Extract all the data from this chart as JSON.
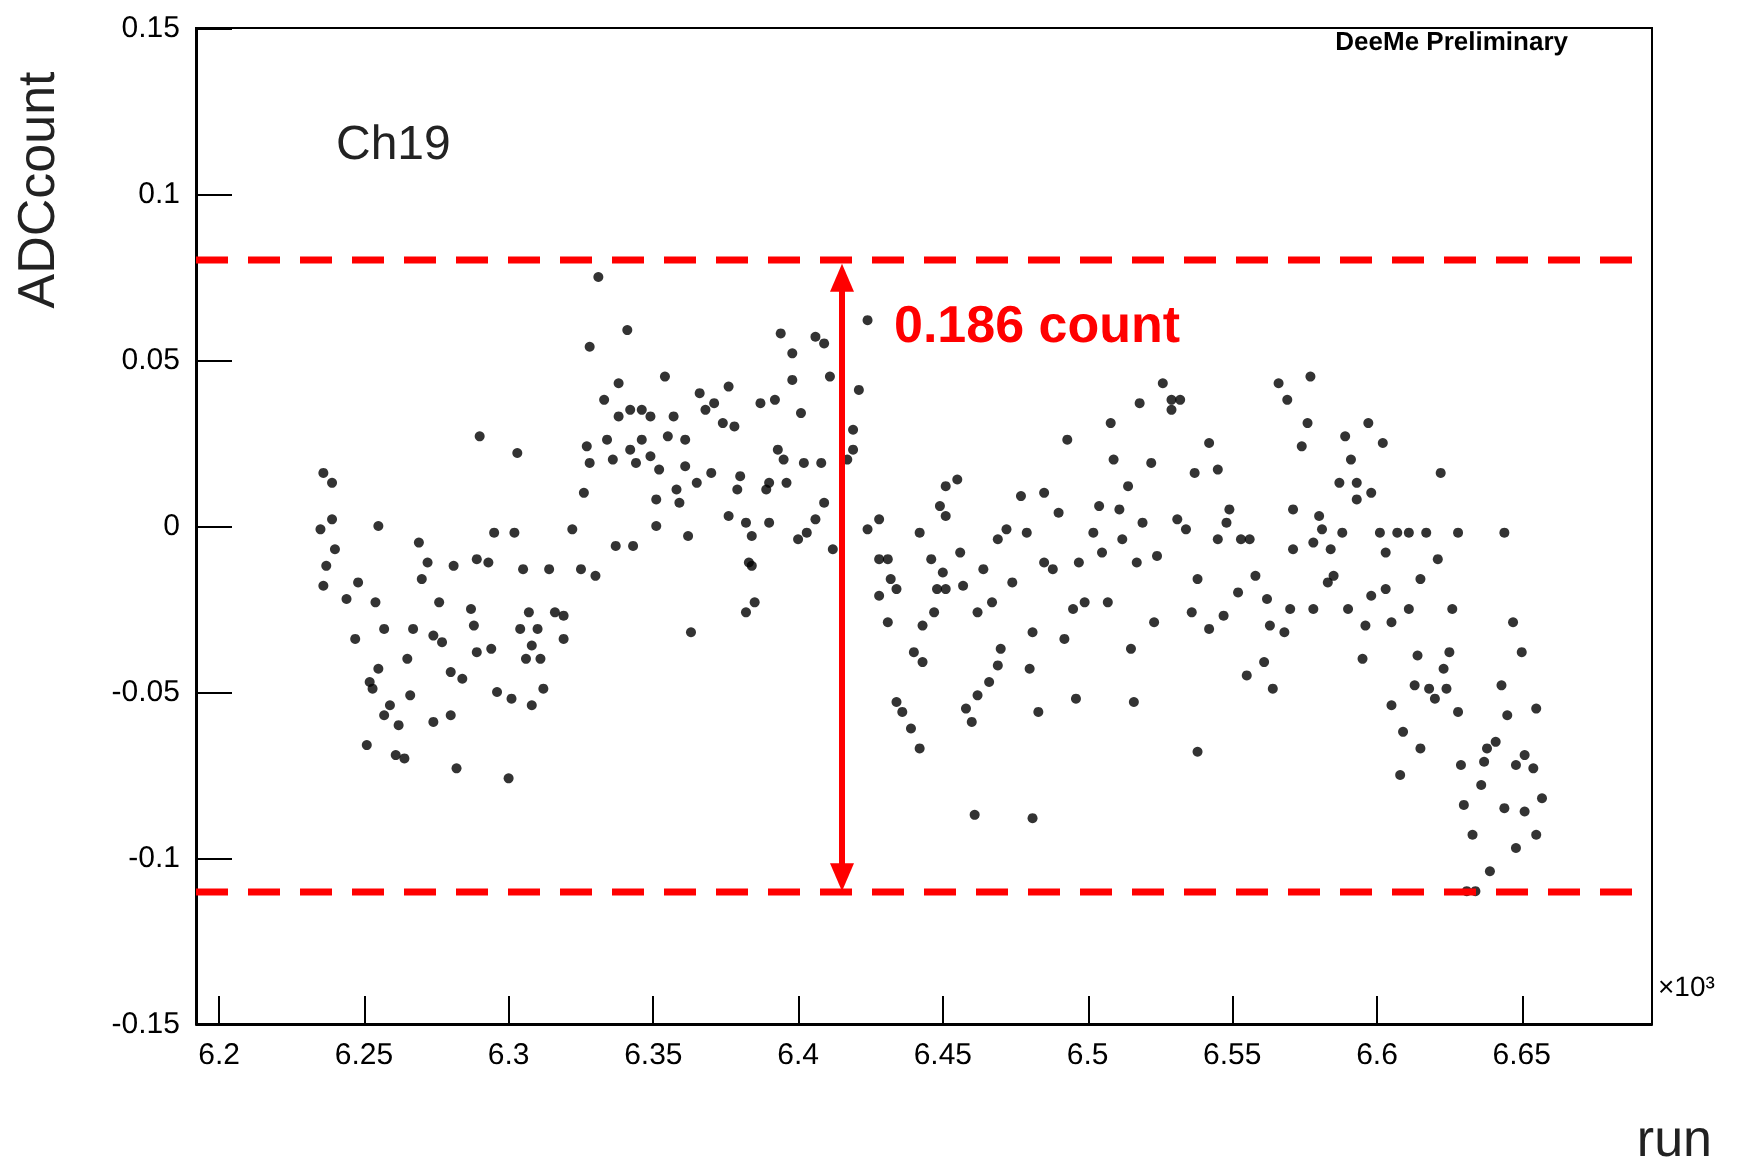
{
  "chart_data": {
    "type": "scatter",
    "xlabel": "run",
    "ylabel": "ADCcount",
    "annotations": [
      "Ch19",
      "DeeMe Preliminary",
      "×10³",
      "0.186 count"
    ],
    "xlim": [
      6.192,
      6.695
    ],
    "xticks": [
      6.2,
      6.25,
      6.3,
      6.35,
      6.4,
      6.45,
      6.5,
      6.55,
      6.6,
      6.65
    ],
    "ylim": [
      -0.15,
      0.15
    ],
    "yticks": [
      -0.15,
      -0.1,
      -0.05,
      0,
      0.05,
      0.1,
      0.15
    ],
    "grid": false,
    "marker": "circle",
    "ref_lines": [
      {
        "axis": "y",
        "value": 0.079,
        "color": "#ff0000",
        "line_style": "dashed"
      },
      {
        "axis": "y",
        "value": -0.11,
        "color": "#ff0000",
        "line_style": "dashed"
      }
    ],
    "series": [
      {
        "color": "#000000",
        "x": [
          6.236,
          6.239,
          6.235,
          6.239,
          6.24,
          6.237,
          6.236,
          6.244,
          6.247,
          6.248,
          6.255,
          6.254,
          6.257,
          6.255,
          6.252,
          6.253,
          6.259,
          6.257,
          6.262,
          6.251,
          6.261,
          6.264,
          6.266,
          6.265,
          6.267,
          6.269,
          6.272,
          6.27,
          6.274,
          6.277,
          6.276,
          6.274,
          6.28,
          6.282,
          6.28,
          6.284,
          6.29,
          6.281,
          6.287,
          6.288,
          6.289,
          6.294,
          6.296,
          6.301,
          6.3,
          6.303,
          6.295,
          6.302,
          6.289,
          6.293,
          6.305,
          6.307,
          6.304,
          6.31,
          6.308,
          6.306,
          6.311,
          6.312,
          6.308,
          6.314,
          6.316,
          6.319,
          6.319,
          6.322,
          6.325,
          6.33,
          6.326,
          6.327,
          6.328,
          6.328,
          6.331,
          6.333,
          6.334,
          6.336,
          6.338,
          6.341,
          6.338,
          6.342,
          6.346,
          6.342,
          6.346,
          6.344,
          6.337,
          6.343,
          6.349,
          6.349,
          6.352,
          6.351,
          6.351,
          6.359,
          6.354,
          6.355,
          6.357,
          6.361,
          6.361,
          6.358,
          6.362,
          6.363,
          6.365,
          6.366,
          6.368,
          6.371,
          6.37,
          6.374,
          6.376,
          6.378,
          6.376,
          6.379,
          6.38,
          6.382,
          6.384,
          6.383,
          6.384,
          6.385,
          6.382,
          6.387,
          6.392,
          6.39,
          6.389,
          6.39,
          6.393,
          6.395,
          6.396,
          6.394,
          6.398,
          6.398,
          6.401,
          6.402,
          6.408,
          6.406,
          6.409,
          6.411,
          6.409,
          6.406,
          6.403,
          6.4,
          6.412,
          6.424,
          6.421,
          6.419,
          6.419,
          6.417,
          6.424,
          6.428,
          6.428,
          6.431,
          6.432,
          6.434,
          6.428,
          6.431,
          6.434,
          6.436,
          6.439,
          6.442,
          6.44,
          6.443,
          6.443,
          6.447,
          6.442,
          6.446,
          6.45,
          6.451,
          6.448,
          6.449,
          6.451,
          6.451,
          6.455,
          6.456,
          6.457,
          6.464,
          6.462,
          6.458,
          6.46,
          6.461,
          6.462,
          6.466,
          6.469,
          6.47,
          6.467,
          6.469,
          6.472,
          6.474,
          6.477,
          6.479,
          6.48,
          6.481,
          6.481,
          6.483,
          6.485,
          6.485,
          6.488,
          6.49,
          6.493,
          6.492,
          6.496,
          6.495,
          6.499,
          6.497,
          6.502,
          6.504,
          6.505,
          6.507,
          6.508,
          6.509,
          6.511,
          6.512,
          6.514,
          6.515,
          6.516,
          6.518,
          6.517,
          6.519,
          6.522,
          6.524,
          6.523,
          6.526,
          6.529,
          6.532,
          6.529,
          6.531,
          6.534,
          6.538,
          6.536,
          6.538,
          6.537,
          6.542,
          6.542,
          6.545,
          6.545,
          6.547,
          6.548,
          6.549,
          6.552,
          6.553,
          6.555,
          6.556,
          6.558,
          6.561,
          6.562,
          6.564,
          6.563,
          6.566,
          6.569,
          6.568,
          6.57,
          6.571,
          6.571,
          6.574,
          6.576,
          6.577,
          6.578,
          6.578,
          6.58,
          6.581,
          6.583,
          6.584,
          6.585,
          6.588,
          6.587,
          6.589,
          6.59,
          6.591,
          6.593,
          6.593,
          6.595,
          6.596,
          6.597,
          6.598,
          6.598,
          6.601,
          6.602,
          6.603,
          6.603,
          6.605,
          6.605,
          6.607,
          6.609,
          6.608,
          6.611,
          6.611,
          6.613,
          6.614,
          6.615,
          6.615,
          6.617,
          6.618,
          6.62,
          6.621,
          6.622,
          6.623,
          6.624,
          6.625,
          6.626,
          6.628,
          6.628,
          6.629,
          6.63,
          6.631,
          6.634,
          6.633,
          6.636,
          6.637,
          6.639,
          6.638,
          6.641,
          6.643,
          6.644,
          6.644,
          6.645,
          6.647,
          6.648,
          6.648,
          6.65,
          6.651,
          6.651,
          6.654,
          6.655,
          6.655,
          6.657
        ],
        "values": [
          0.016,
          0.013,
          -0.001,
          0.002,
          -0.007,
          -0.012,
          -0.018,
          -0.022,
          -0.034,
          -0.017,
          0.0,
          -0.023,
          -0.031,
          -0.043,
          -0.047,
          -0.049,
          -0.054,
          -0.057,
          -0.06,
          -0.066,
          -0.069,
          -0.07,
          -0.051,
          -0.04,
          -0.031,
          -0.005,
          -0.011,
          -0.016,
          -0.033,
          -0.035,
          -0.023,
          -0.059,
          -0.057,
          -0.073,
          -0.044,
          -0.046,
          0.027,
          -0.012,
          -0.025,
          -0.03,
          -0.038,
          -0.037,
          -0.05,
          -0.052,
          -0.076,
          0.022,
          -0.002,
          -0.002,
          -0.01,
          -0.011,
          -0.013,
          -0.026,
          -0.031,
          -0.031,
          -0.036,
          -0.04,
          -0.04,
          -0.049,
          -0.054,
          -0.013,
          -0.026,
          -0.027,
          -0.034,
          -0.001,
          -0.013,
          -0.015,
          0.01,
          0.024,
          0.019,
          0.054,
          0.075,
          0.038,
          0.026,
          0.02,
          0.043,
          0.059,
          0.033,
          0.035,
          0.035,
          0.023,
          0.026,
          0.019,
          -0.006,
          -0.006,
          0.033,
          0.021,
          0.017,
          0.0,
          0.008,
          0.007,
          0.045,
          0.027,
          0.033,
          0.026,
          0.018,
          0.011,
          -0.003,
          -0.032,
          0.013,
          0.04,
          0.035,
          0.037,
          0.016,
          0.031,
          0.042,
          0.03,
          0.003,
          0.011,
          0.015,
          0.001,
          -0.003,
          -0.011,
          -0.012,
          -0.023,
          -0.026,
          0.037,
          0.038,
          0.013,
          0.011,
          0.001,
          0.023,
          0.02,
          0.013,
          0.058,
          0.052,
          0.044,
          0.034,
          0.019,
          0.019,
          0.057,
          0.055,
          0.045,
          0.007,
          0.002,
          -0.002,
          -0.004,
          -0.007,
          0.062,
          0.041,
          0.029,
          0.023,
          0.02,
          -0.001,
          0.002,
          -0.01,
          -0.01,
          -0.016,
          -0.019,
          -0.021,
          -0.029,
          -0.053,
          -0.056,
          -0.061,
          -0.067,
          -0.038,
          -0.041,
          -0.03,
          -0.026,
          -0.002,
          -0.01,
          -0.014,
          -0.019,
          -0.019,
          0.006,
          0.003,
          0.012,
          0.014,
          -0.008,
          -0.018,
          -0.013,
          -0.026,
          -0.055,
          -0.059,
          -0.087,
          -0.051,
          -0.047,
          -0.042,
          -0.037,
          -0.023,
          -0.004,
          -0.001,
          -0.017,
          0.009,
          -0.002,
          -0.043,
          -0.088,
          -0.032,
          -0.056,
          0.01,
          -0.011,
          -0.013,
          0.004,
          0.026,
          -0.034,
          -0.052,
          -0.025,
          -0.023,
          -0.011,
          -0.002,
          0.006,
          -0.008,
          -0.023,
          0.031,
          0.02,
          0.005,
          -0.004,
          0.012,
          -0.037,
          -0.053,
          0.037,
          -0.011,
          0.001,
          0.019,
          -0.009,
          -0.029,
          0.043,
          0.038,
          0.038,
          0.035,
          0.002,
          -0.001,
          -0.068,
          -0.026,
          -0.016,
          0.016,
          0.025,
          -0.031,
          -0.004,
          0.017,
          -0.027,
          0.001,
          0.005,
          -0.02,
          -0.004,
          -0.045,
          -0.004,
          -0.015,
          -0.041,
          -0.022,
          -0.049,
          -0.03,
          0.043,
          0.038,
          -0.032,
          -0.025,
          -0.007,
          0.005,
          0.024,
          0.031,
          0.045,
          -0.025,
          -0.005,
          0.003,
          -0.001,
          -0.017,
          -0.007,
          -0.015,
          -0.002,
          0.013,
          0.027,
          -0.025,
          0.02,
          0.013,
          0.008,
          -0.04,
          -0.03,
          0.031,
          0.01,
          -0.021,
          -0.002,
          0.025,
          -0.019,
          -0.008,
          -0.029,
          -0.054,
          -0.002,
          -0.062,
          -0.075,
          -0.002,
          -0.025,
          -0.048,
          -0.039,
          -0.016,
          -0.067,
          -0.002,
          -0.049,
          -0.052,
          -0.01,
          0.016,
          -0.043,
          -0.049,
          -0.038,
          -0.025,
          -0.056,
          -0.002,
          -0.072,
          -0.084,
          -0.11,
          -0.11,
          -0.093,
          -0.078,
          -0.071,
          -0.104,
          -0.067,
          -0.065,
          -0.048,
          -0.002,
          -0.085,
          -0.057,
          -0.029,
          -0.097,
          -0.072,
          -0.038,
          -0.069,
          -0.086,
          -0.073,
          -0.055,
          -0.093,
          -0.082
        ]
      }
    ]
  }
}
